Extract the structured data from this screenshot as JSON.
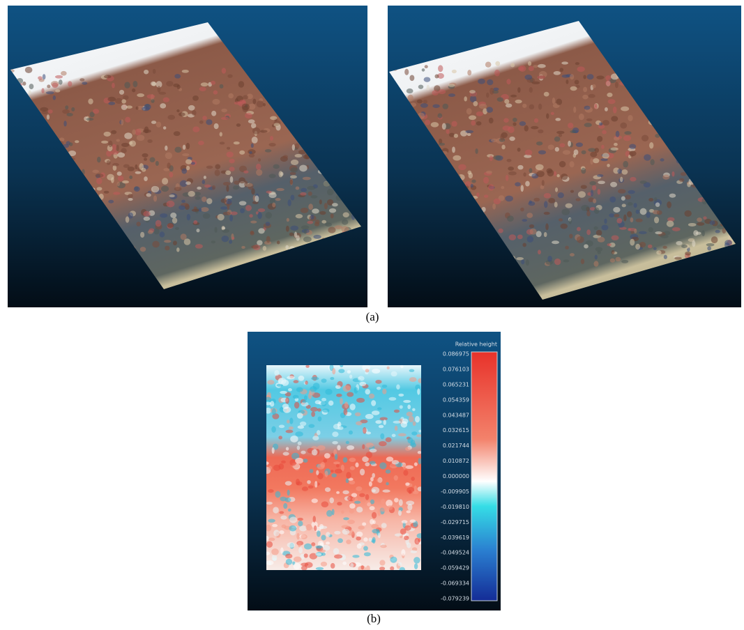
{
  "figure": {
    "panel_a_caption": "(a)",
    "panel_b_caption": "(b)",
    "colorbar": {
      "title": "Relative height",
      "ticks": [
        "0.086975",
        "0.076103",
        "0.065231",
        "0.054359",
        "0.043487",
        "0.032615",
        "0.021744",
        "0.010872",
        "0.000000",
        "-0.009905",
        "-0.019810",
        "-0.029715",
        "-0.039619",
        "-0.049524",
        "-0.059429",
        "-0.069334",
        "-0.079239"
      ]
    }
  }
}
